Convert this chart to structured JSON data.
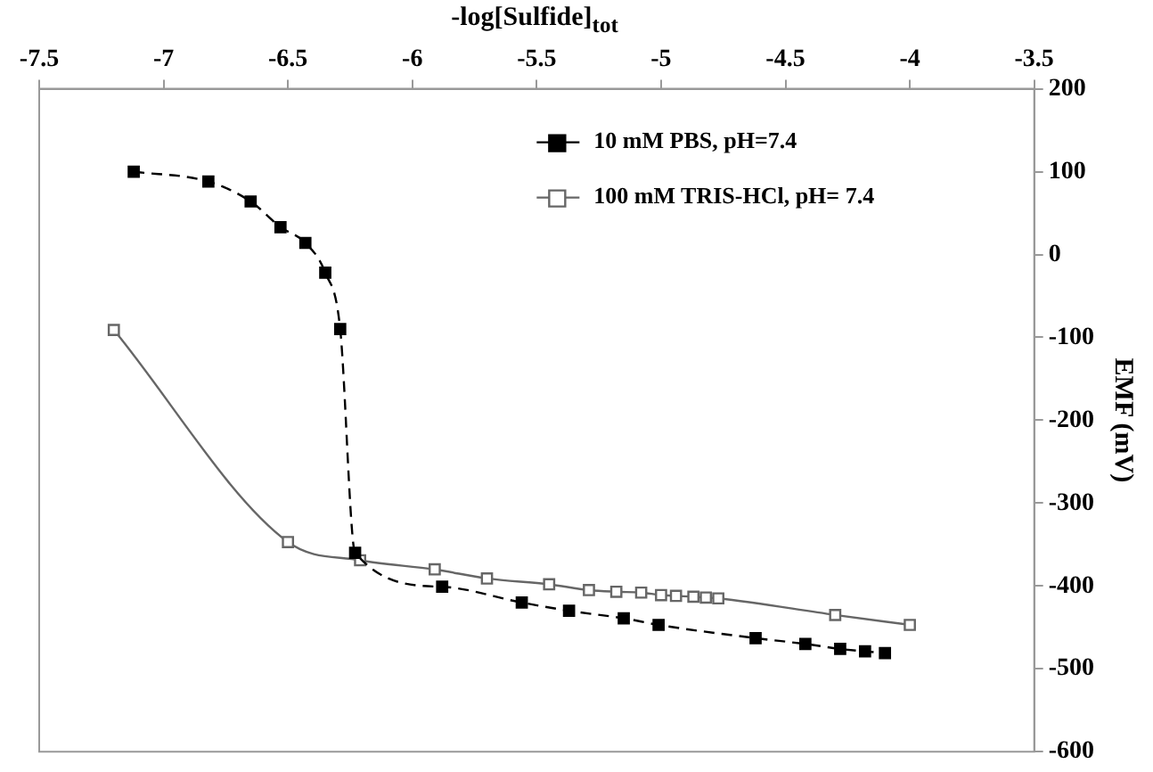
{
  "chart_data": {
    "type": "line",
    "xlabel": "-log[Sulfide]$_{tot}$",
    "ylabel": "EMF (mV)",
    "xlim": [
      -7.5,
      -3.5
    ],
    "xticks": [
      -7.5,
      -7,
      -6.5,
      -6,
      -5.5,
      -5,
      -4.5,
      -4,
      -3.5
    ],
    "ylim": [
      -600,
      200
    ],
    "yticks": [
      200,
      100,
      0,
      -100,
      -200,
      -300,
      -400,
      -500,
      -600
    ],
    "grid": false,
    "legend": "top right",
    "marker": "square",
    "series": [
      {
        "name": "10 mM PBS, pH=7.4",
        "color": "#000000",
        "line_style": "dashed",
        "x": [
          -7.12,
          -6.82,
          -6.65,
          -6.53,
          -6.43,
          -6.35,
          -6.29,
          -6.23,
          -5.88,
          -5.56,
          -5.37,
          -5.15,
          -5.01,
          -4.62,
          -4.42,
          -4.28,
          -4.18,
          -4.1
        ],
        "values": [
          100,
          88,
          64,
          33,
          14,
          -22,
          -90,
          -360,
          -401,
          -420,
          -430,
          -439,
          -447,
          -463,
          -470,
          -476,
          -479,
          -481
        ]
      },
      {
        "name": "100 mM TRIS-HCl, pH= 7.4",
        "color": "#666666",
        "line_style": "solid",
        "x": [
          -7.2,
          -6.5,
          -6.21,
          -5.91,
          -5.7,
          -5.45,
          -5.29,
          -5.18,
          -5.08,
          -5.0,
          -4.94,
          -4.87,
          -4.82,
          -4.77,
          -4.3,
          -4.0
        ],
        "values": [
          -91,
          -347,
          -369,
          -380,
          -391,
          -398,
          -405,
          -407,
          -408,
          -411,
          -412,
          -413,
          -414,
          -415,
          -435,
          -447
        ]
      }
    ]
  }
}
